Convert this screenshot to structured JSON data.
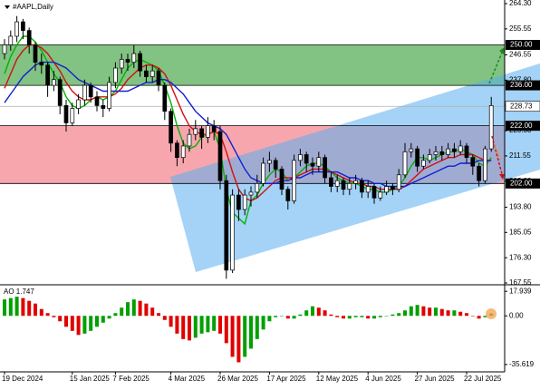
{
  "chart_data": {
    "type": "candlestick",
    "title": "#AAPL,Daily",
    "categories": [
      "19 Dec 2024",
      null,
      null,
      null,
      null,
      null,
      null,
      null,
      null,
      null,
      null,
      "15 Jan 2025",
      null,
      null,
      null,
      null,
      null,
      null,
      "7 Feb 2025",
      null,
      null,
      null,
      null,
      null,
      null,
      null,
      null,
      "4 Mar 2025",
      null,
      null,
      null,
      null,
      null,
      null,
      null,
      "26 Mar 2025",
      null,
      null,
      null,
      null,
      null,
      null,
      null,
      "17 Apr 2025",
      null,
      null,
      null,
      null,
      null,
      null,
      null,
      "12 May 2025",
      null,
      null,
      null,
      null,
      null,
      null,
      null,
      "4 Jun 2025",
      null,
      null,
      null,
      null,
      null,
      null,
      null,
      "27 Jun 2025",
      null,
      null,
      null,
      null,
      null,
      null,
      null,
      "22 Jul 2025",
      null,
      null,
      null,
      null
    ],
    "ohlc": [
      [
        247,
        252,
        245,
        250
      ],
      [
        250,
        255,
        248,
        253
      ],
      [
        253,
        260,
        251,
        258
      ],
      [
        258,
        259,
        252,
        255
      ],
      [
        255,
        256,
        247,
        250
      ],
      [
        250,
        251,
        241,
        244
      ],
      [
        244,
        247,
        240,
        243
      ],
      [
        243,
        244,
        232,
        236
      ],
      [
        236,
        241,
        234,
        238
      ],
      [
        238,
        239,
        226,
        229
      ],
      [
        229,
        231,
        220,
        223
      ],
      [
        223,
        230,
        222,
        228
      ],
      [
        228,
        233,
        226,
        231
      ],
      [
        231,
        238,
        229,
        236
      ],
      [
        236,
        237,
        230,
        232
      ],
      [
        232,
        234,
        227,
        229
      ],
      [
        229,
        231,
        225,
        228
      ],
      [
        228,
        239,
        227,
        237
      ],
      [
        237,
        244,
        235,
        242
      ],
      [
        242,
        247,
        240,
        245
      ],
      [
        245,
        247,
        241,
        244
      ],
      [
        244,
        250,
        242,
        247
      ],
      [
        247,
        248,
        239,
        241
      ],
      [
        241,
        243,
        237,
        239
      ],
      [
        239,
        243,
        237,
        241
      ],
      [
        241,
        242,
        234,
        236
      ],
      [
        236,
        237,
        224,
        227
      ],
      [
        227,
        228,
        213,
        216
      ],
      [
        216,
        217,
        208,
        211
      ],
      [
        211,
        217,
        209,
        215
      ],
      [
        215,
        221,
        213,
        219
      ],
      [
        219,
        224,
        217,
        221
      ],
      [
        221,
        222,
        214,
        218
      ],
      [
        218,
        225,
        216,
        222
      ],
      [
        222,
        224,
        217,
        220
      ],
      [
        220,
        222,
        200,
        203
      ],
      [
        203,
        205,
        169,
        172
      ],
      [
        172,
        200,
        171,
        198
      ],
      [
        198,
        200,
        189,
        193
      ],
      [
        193,
        200,
        191,
        198
      ],
      [
        198,
        201,
        194,
        199
      ],
      [
        199,
        205,
        197,
        202
      ],
      [
        202,
        211,
        201,
        209
      ],
      [
        209,
        213,
        206,
        210
      ],
      [
        210,
        211,
        204,
        207
      ],
      [
        207,
        208,
        198,
        200
      ],
      [
        200,
        201,
        193,
        196
      ],
      [
        196,
        212,
        195,
        210
      ],
      [
        210,
        214,
        208,
        212
      ],
      [
        212,
        213,
        206,
        209
      ],
      [
        209,
        211,
        205,
        208
      ],
      [
        208,
        213,
        206,
        211
      ],
      [
        211,
        212,
        202,
        204
      ],
      [
        204,
        206,
        199,
        201
      ],
      [
        201,
        205,
        199,
        203
      ],
      [
        203,
        204,
        198,
        200
      ],
      [
        200,
        204,
        198,
        202
      ],
      [
        202,
        205,
        200,
        203
      ],
      [
        203,
        204,
        197,
        199
      ],
      [
        199,
        203,
        197,
        201
      ],
      [
        201,
        202,
        195,
        197
      ],
      [
        197,
        201,
        196,
        199
      ],
      [
        199,
        203,
        198,
        201
      ],
      [
        201,
        202,
        198,
        200
      ],
      [
        200,
        207,
        199,
        205
      ],
      [
        205,
        216,
        204,
        213
      ],
      [
        213,
        216,
        211,
        214
      ],
      [
        214,
        215,
        206,
        208
      ],
      [
        208,
        212,
        207,
        210
      ],
      [
        210,
        214,
        209,
        212
      ],
      [
        212,
        215,
        210,
        213
      ],
      [
        213,
        215,
        210,
        212
      ],
      [
        212,
        216,
        211,
        214
      ],
      [
        214,
        216,
        211,
        213
      ],
      [
        213,
        217,
        212,
        215
      ],
      [
        215,
        216,
        209,
        211
      ],
      [
        211,
        212,
        205,
        208
      ],
      [
        208,
        209,
        201,
        203
      ],
      [
        203,
        215,
        202,
        214
      ],
      [
        214,
        232,
        213,
        229
      ]
    ],
    "up_color": "#ffffff",
    "down_color": "#000000",
    "ylim": [
      167.55,
      264.3
    ],
    "yticks": [
      {
        "value": 264.3,
        "label": "264.30"
      },
      {
        "value": 255.55,
        "label": "255.55"
      },
      {
        "value": 246.55,
        "label": "246.55"
      },
      {
        "value": 237.8,
        "label": "237.80"
      },
      {
        "value": 229.05,
        "label": "229.05"
      },
      {
        "value": 220.3,
        "label": "220.30"
      },
      {
        "value": 211.55,
        "label": "211.55"
      },
      {
        "value": 202.8,
        "label": "202.80"
      },
      {
        "value": 193.8,
        "label": "193.80"
      },
      {
        "value": 185.05,
        "label": "185.05"
      },
      {
        "value": 176.3,
        "label": "176.30"
      },
      {
        "value": 167.55,
        "label": "167.55"
      }
    ],
    "bands": [
      {
        "low": 236,
        "high": 250,
        "color": "#82c282"
      },
      {
        "low": 202,
        "high": 222,
        "color": "#f7a6ae"
      }
    ],
    "levels": [
      {
        "value": 250,
        "label": "250.00"
      },
      {
        "value": 236,
        "label": "236.00"
      },
      {
        "value": 222,
        "label": "222.00"
      },
      {
        "value": 202,
        "label": "202.00"
      }
    ],
    "current": 228.73,
    "series": [
      {
        "color": "#00b400",
        "values": [
          240,
          246,
          250,
          253,
          253,
          251,
          248,
          244,
          240,
          237,
          232,
          229,
          228,
          229,
          231,
          232,
          231,
          232,
          234,
          238,
          242,
          244,
          245,
          244,
          243,
          241,
          236,
          230,
          222,
          216,
          214,
          215,
          218,
          219,
          220,
          214,
          200,
          192,
          190,
          188,
          196,
          198,
          202,
          205,
          207,
          206,
          203,
          204,
          206,
          208,
          209,
          209,
          208,
          206,
          204,
          203,
          202,
          202,
          201,
          200,
          200,
          199,
          199,
          200,
          201,
          204,
          208,
          211,
          211,
          210,
          211,
          212,
          213,
          213,
          214,
          213,
          212,
          209,
          208,
          211
        ]
      },
      {
        "color": "#d01010",
        "values": [
          235,
          240,
          245,
          248,
          250,
          250,
          249,
          247,
          244,
          241,
          237,
          234,
          232,
          231,
          231,
          232,
          232,
          232,
          233,
          235,
          238,
          240,
          242,
          243,
          243,
          242,
          240,
          236,
          231,
          226,
          222,
          220,
          219,
          219,
          220,
          219,
          213,
          206,
          200,
          197,
          196,
          197,
          199,
          201,
          203,
          204,
          204,
          204,
          205,
          206,
          207,
          207,
          207,
          206,
          205,
          204,
          203,
          202,
          202,
          201,
          201,
          200,
          200,
          200,
          200,
          201,
          203,
          205,
          207,
          208,
          209,
          210,
          211,
          211,
          212,
          212,
          212,
          211,
          210,
          210
        ]
      },
      {
        "color": "#1020d0",
        "values": [
          230,
          233,
          236,
          239,
          241,
          243,
          244,
          244,
          244,
          243,
          242,
          240,
          238,
          237,
          236,
          235,
          234,
          234,
          234,
          234,
          234,
          235,
          236,
          237,
          237,
          238,
          238,
          237,
          235,
          233,
          230,
          227,
          225,
          223,
          222,
          221,
          219,
          215,
          211,
          207,
          204,
          203,
          202,
          202,
          202,
          203,
          203,
          204,
          204,
          205,
          206,
          206,
          206,
          206,
          206,
          205,
          204,
          204,
          203,
          203,
          202,
          202,
          201,
          201,
          201,
          201,
          202,
          203,
          204,
          205,
          206,
          207,
          208,
          208,
          209,
          209,
          209,
          210,
          210,
          210
        ]
      }
    ],
    "indicator": {
      "type": "histogram",
      "title": "AO 1.747",
      "values": [
        12,
        13,
        14,
        13,
        11,
        9,
        5,
        2,
        -1,
        -4,
        -8,
        -11,
        -14,
        -13,
        -11,
        -8,
        -5,
        -2,
        2,
        6,
        10,
        12,
        11,
        9,
        6,
        2,
        -3,
        -8,
        -13,
        -17,
        -18,
        -16,
        -13,
        -12,
        -11,
        -13,
        -20,
        -30,
        -34,
        -30,
        -24,
        -17,
        -10,
        -4,
        -1,
        0,
        -2,
        -2,
        1,
        4,
        7,
        6,
        4,
        1,
        -1,
        -2,
        -2,
        -1,
        -1,
        -2,
        -2,
        -1,
        0,
        1,
        2,
        4,
        7,
        8,
        7,
        6,
        6,
        5,
        4,
        4,
        3,
        2,
        0,
        -2,
        -1,
        1.747
      ],
      "up_color": "#00a000",
      "down_color": "#e00000",
      "ylim": [
        -41,
        21.4
      ],
      "yticks": [
        17.939,
        {
          "value": 0,
          "label": "0.00"
        },
        -35.619
      ]
    }
  }
}
